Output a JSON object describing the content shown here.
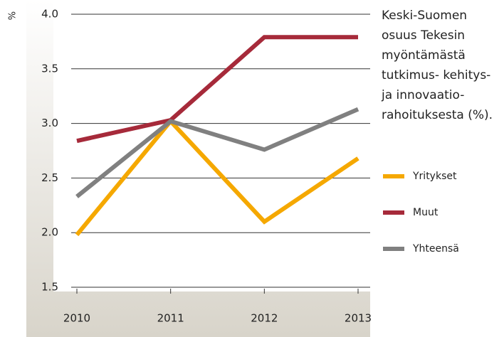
{
  "chart_data": {
    "type": "line",
    "title": [
      "Keski-Suomen",
      "osuus Tekesin",
      "myöntämästä",
      "tutkimus- kehitys-",
      "ja innovaatio-",
      "rahoituksesta (%)."
    ],
    "ylabel": "%",
    "categories": [
      "2010",
      "2011",
      "2012",
      "2013"
    ],
    "series": [
      {
        "name": "Yritykset",
        "color": "#f5a800",
        "values": [
          1.98,
          3.02,
          2.1,
          2.68
        ]
      },
      {
        "name": "Muut",
        "color": "#a62a3a",
        "values": [
          2.84,
          3.03,
          3.79,
          3.79
        ]
      },
      {
        "name": "Yhteensä",
        "color": "#808080",
        "values": [
          2.33,
          3.02,
          2.76,
          3.13
        ]
      }
    ],
    "ylim": [
      1.5,
      4.0
    ],
    "yticks": [
      {
        "value": 1.5,
        "label": "1.5"
      },
      {
        "value": 2.0,
        "label": "2.0"
      },
      {
        "value": 2.5,
        "label": "2.5"
      },
      {
        "value": 3.0,
        "label": "3.0"
      },
      {
        "value": 3.5,
        "label": "3.5"
      },
      {
        "value": 4.0,
        "label": "4.0"
      }
    ],
    "grid": true,
    "legend": "right"
  }
}
